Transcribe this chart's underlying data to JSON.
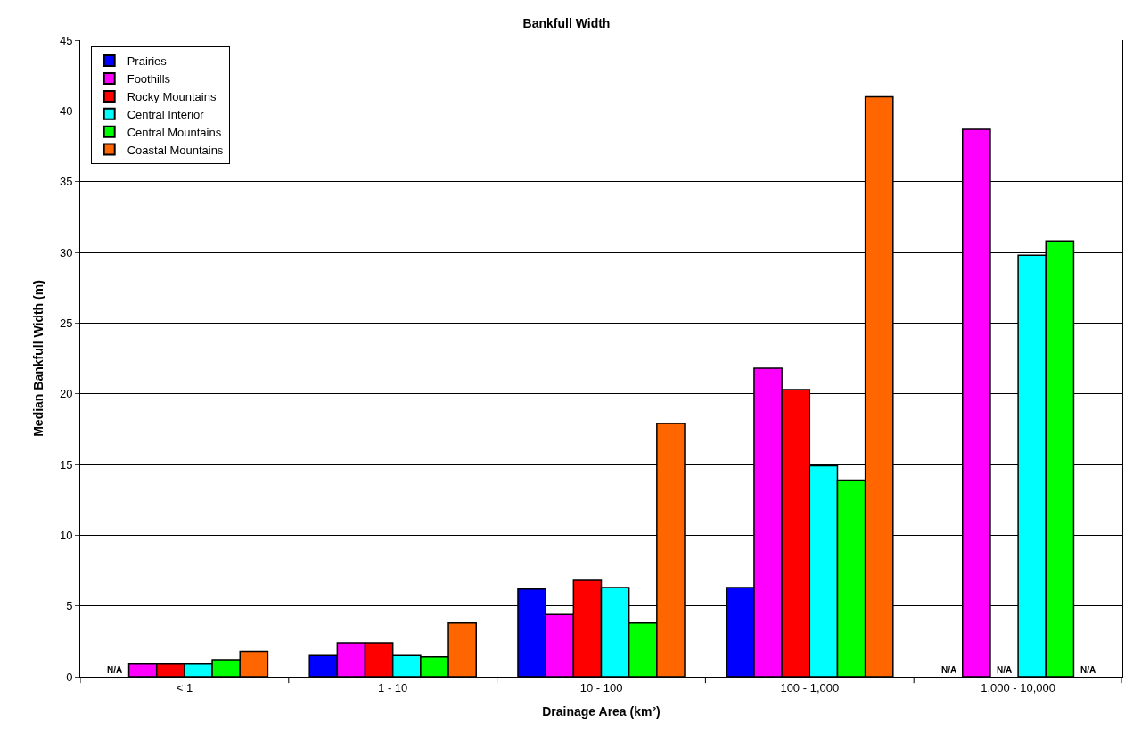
{
  "chart_data": {
    "type": "bar",
    "title": "Bankfull Width",
    "xlabel": "Drainage Area (km²)",
    "ylabel": "Median Bankfull Width (m)",
    "categories": [
      "< 1",
      "1 - 10",
      "10 - 100",
      "100 - 1,000",
      "1,000 - 10,000"
    ],
    "series": [
      {
        "name": "Prairies",
        "color": "#0000ff",
        "values": [
          null,
          1.5,
          6.2,
          6.3,
          null
        ],
        "value_labels": [
          "N/A",
          null,
          null,
          null,
          "N/A"
        ]
      },
      {
        "name": "Foothills",
        "color": "#ff00ff",
        "values": [
          0.9,
          2.4,
          4.4,
          21.8,
          38.7
        ]
      },
      {
        "name": "Rocky Mountains",
        "color": "#ff0000",
        "values": [
          0.9,
          2.4,
          6.8,
          20.3,
          null
        ],
        "value_labels": [
          null,
          null,
          null,
          null,
          "N/A"
        ]
      },
      {
        "name": "Central Interior",
        "color": "#00ffff",
        "values": [
          0.9,
          1.5,
          6.3,
          14.9,
          29.8
        ]
      },
      {
        "name": "Central Mountains",
        "color": "#00ff00",
        "values": [
          1.2,
          1.4,
          3.8,
          13.9,
          30.8
        ]
      },
      {
        "name": "Coastal Mountains",
        "color": "#ff6600",
        "values": [
          1.8,
          3.8,
          17.9,
          41.0,
          null
        ],
        "value_labels": [
          null,
          null,
          null,
          null,
          "N/A"
        ]
      }
    ],
    "ylim": [
      0,
      45
    ],
    "yticks": [
      0,
      5,
      10,
      15,
      20,
      25,
      30,
      35,
      40,
      45
    ],
    "grid": "y",
    "legend": "top left"
  }
}
